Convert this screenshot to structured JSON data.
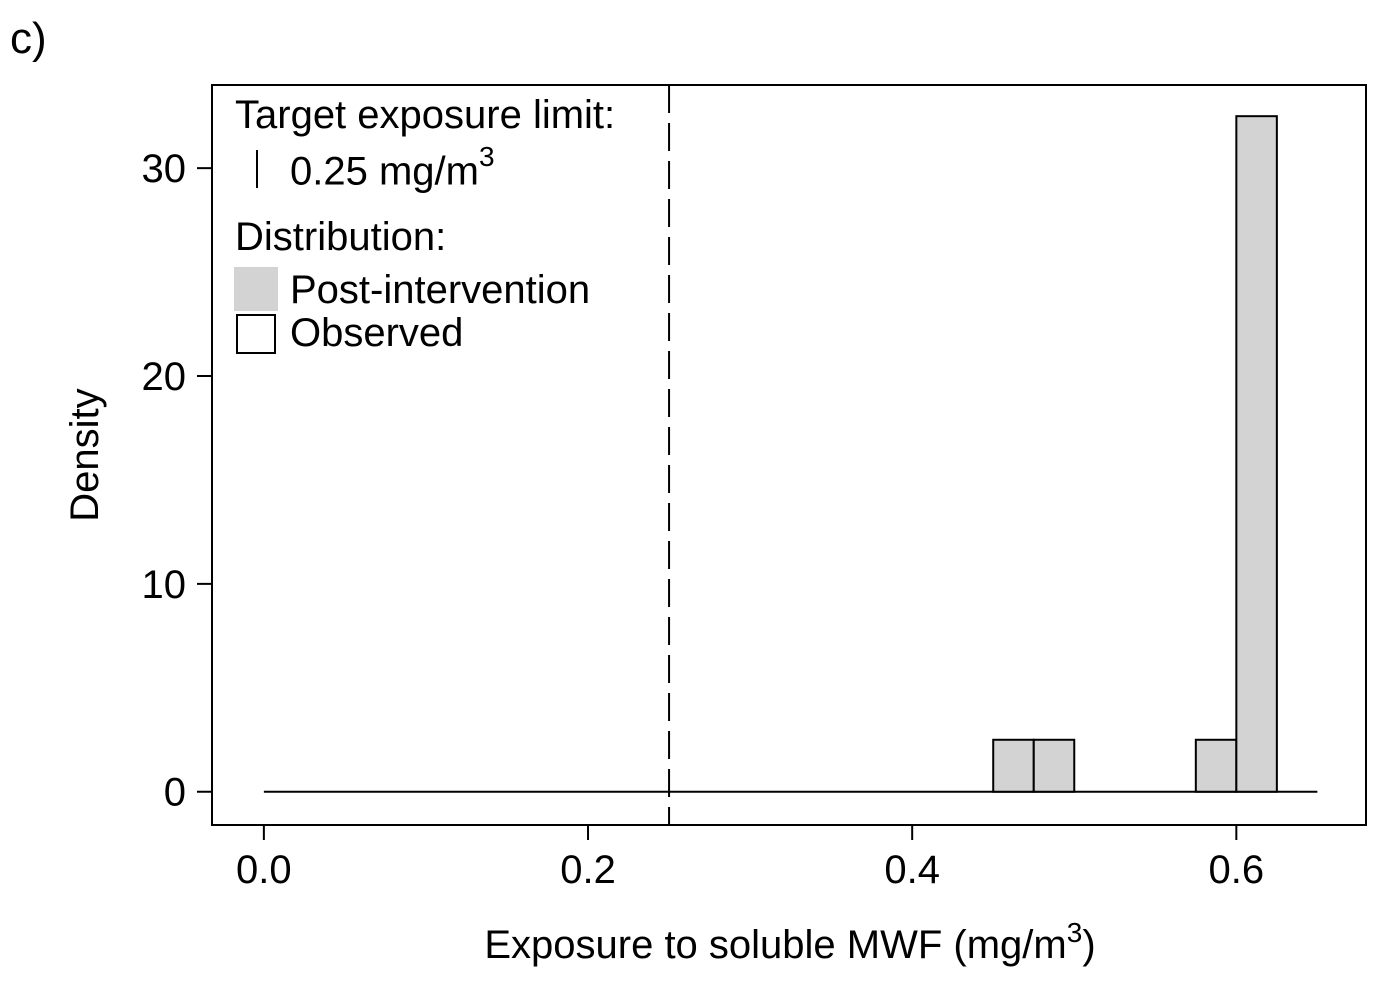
{
  "panel_label": "c)",
  "legend": {
    "limit_title": "Target exposure limit:",
    "limit_value": "0.25 mg/m",
    "limit_unit_sup": "3",
    "dist_title": "Distribution:",
    "items": [
      {
        "label": "Post-intervention",
        "fill": "#d3d3d3",
        "stroke": "none"
      },
      {
        "label": "Observed",
        "fill": "#ffffff",
        "stroke": "#000000"
      }
    ]
  },
  "chart_data": {
    "type": "bar",
    "xlabel_main": "Exposure to soluble MWF (mg/m",
    "xlabel_sup": "3",
    "xlabel_end": ")",
    "ylabel": "Density",
    "xlim": [
      -0.032,
      0.68
    ],
    "ylim": [
      -1.6,
      34
    ],
    "xticks": [
      0.0,
      0.2,
      0.4,
      0.6
    ],
    "xtick_labels": [
      "0.0",
      "0.2",
      "0.4",
      "0.6"
    ],
    "yticks": [
      0,
      10,
      20,
      30
    ],
    "ytick_labels": [
      "0",
      "10",
      "20",
      "30"
    ],
    "baseline_range": [
      0.0,
      0.65
    ],
    "reference_line": {
      "x": 0.25,
      "style": "dashed"
    },
    "bin_width": 0.025,
    "series": [
      {
        "name": "Post-intervention",
        "fill": "#d3d3d3",
        "bins": [
          {
            "x0": 0.45,
            "x1": 0.475,
            "density": 2.5
          },
          {
            "x0": 0.475,
            "x1": 0.5,
            "density": 2.5
          },
          {
            "x0": 0.575,
            "x1": 0.6,
            "density": 2.5
          },
          {
            "x0": 0.6,
            "x1": 0.625,
            "density": 32.5
          }
        ]
      }
    ]
  }
}
